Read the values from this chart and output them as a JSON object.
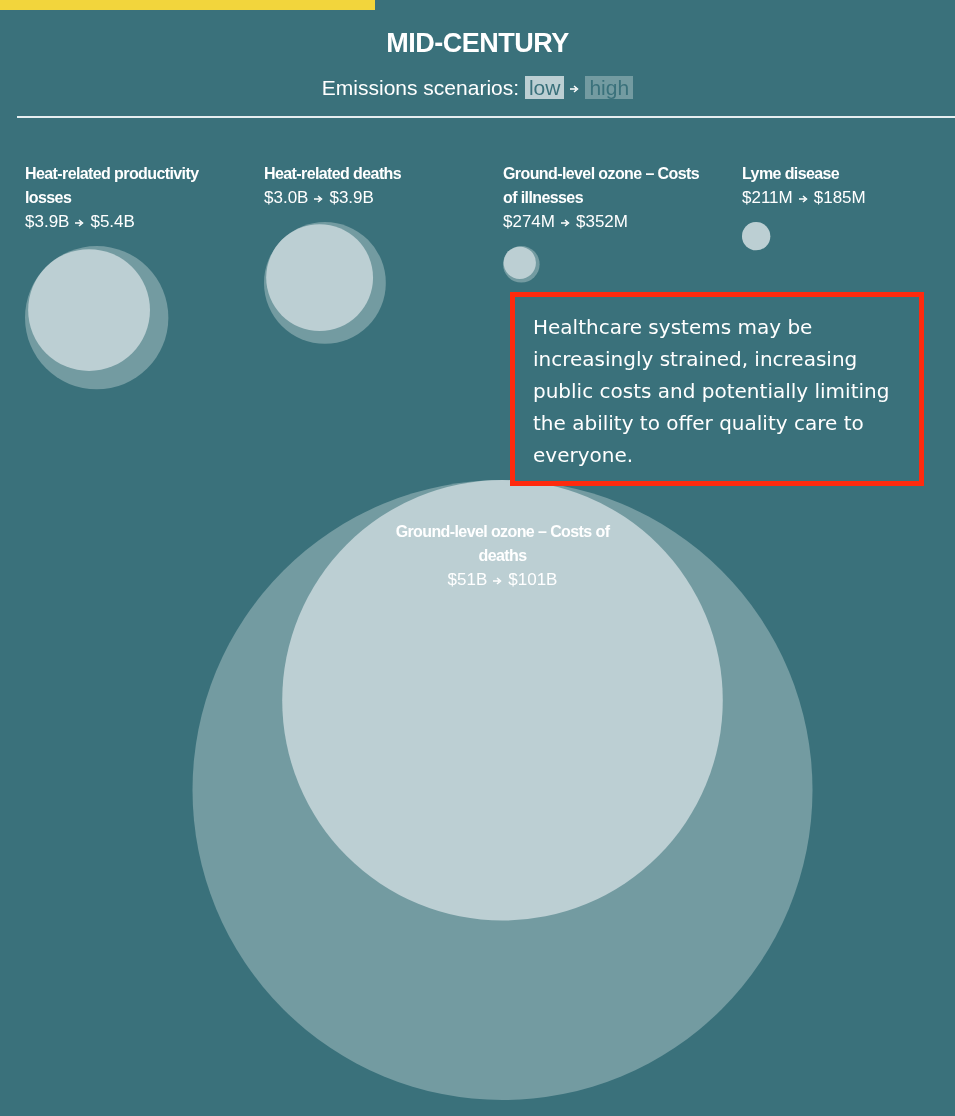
{
  "chart_data": {
    "type": "other",
    "title": "MID-CENTURY",
    "subtitle": "Emissions scenarios:",
    "legend": "top",
    "categories": [
      "Heat-related productivity losses",
      "Heat-related deaths",
      "Ground-level ozone – Costs of illnesses",
      "Lyme disease",
      "Ground-level ozone – Costs of deaths"
    ],
    "series": [
      {
        "name": "low",
        "color": "#bccfd3",
        "values": [
          3900000000,
          3000000000,
          274000000,
          211000000,
          51000000000
        ],
        "value_labels": [
          "$3.9B",
          "$3.0B",
          "$274M",
          "$211M",
          "$51B"
        ]
      },
      {
        "name": "high",
        "color": "#739ba1",
        "values": [
          5400000000,
          3900000000,
          352000000,
          185000000,
          101000000000
        ],
        "value_labels": [
          "$5.4B",
          "$3.9B",
          "$352M",
          "$185M",
          "$101B"
        ]
      }
    ],
    "annotations": [
      "Healthcare systems may be increasingly strained, increasing public costs and potentially limiting the ability to offer quality care to everyone."
    ]
  }
}
